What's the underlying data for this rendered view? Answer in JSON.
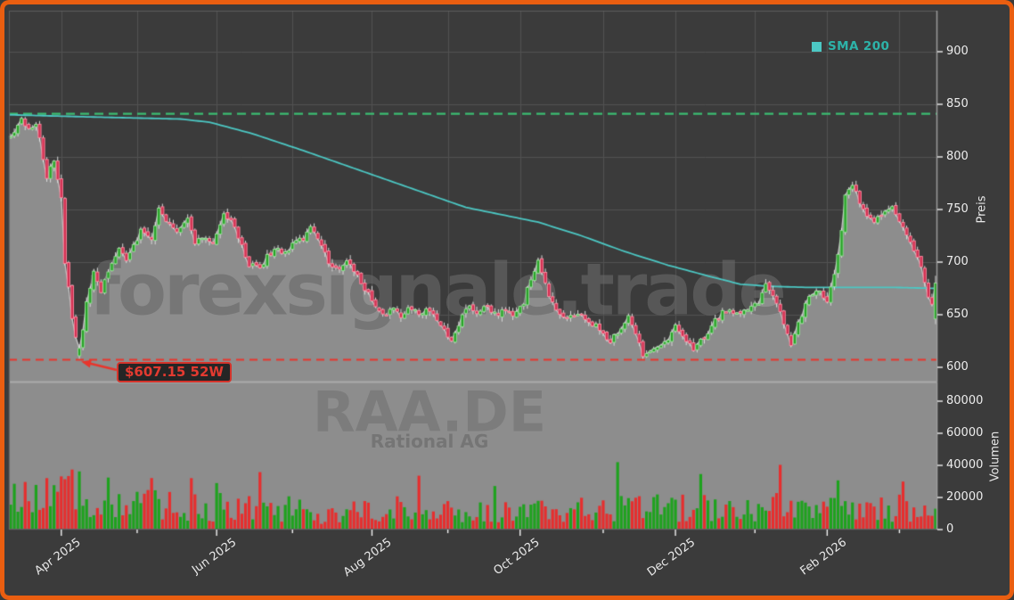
{
  "legend": {
    "label": "SMA 200"
  },
  "watermarks": {
    "site": "forexsignale.trade",
    "symbol": "RAA.DE",
    "company": "Rational AG"
  },
  "annotations": {
    "low_label": "$607.15 52W",
    "low_line_price": 607.15,
    "high_line_price": 841.0,
    "low_point_day": 19
  },
  "colors": {
    "border": "#ea5e10",
    "background": "#3b3b3b",
    "grid": "#525252",
    "panel_gray": "#8d8d8d",
    "area_top_line": "#c8c8c8",
    "separator": "#b4b4b4",
    "candle_up_fill": "#29a329",
    "candle_up_stroke": "#95dd95",
    "candle_down_fill": "#d23052",
    "candle_down_stroke": "#ff8aa0",
    "wick": "#d9d9d9",
    "volume_up": "#1ea21e",
    "volume_down": "#e62e2e",
    "sma_line": "#4cc8c4",
    "legend_text": "#2db3a9",
    "high_line": "#3cbd72",
    "low_line": "#e8352c",
    "low_label_text": "#e33a30",
    "spine": "#5c5c5c",
    "right_spine": "#9a9a9a",
    "tick_mark": "#f2f2f2"
  },
  "chart_data": {
    "type": "candlestick+volume",
    "title": "",
    "symbol": "RAA.DE",
    "x_axis": {
      "n_days": 257,
      "range_note": "Mar 2025 - Mar 2026, daily candles",
      "major_ticks": [
        {
          "day": 14,
          "label": "Apr 2025"
        },
        {
          "day": 57,
          "label": "Jun 2025"
        },
        {
          "day": 100,
          "label": "Aug 2025"
        },
        {
          "day": 141,
          "label": "Oct 2025"
        },
        {
          "day": 184,
          "label": "Dec 2025"
        },
        {
          "day": 226,
          "label": "Feb 2026"
        }
      ],
      "minor_tick_days": [
        35,
        78,
        121,
        164,
        206,
        246
      ]
    },
    "price_axis": {
      "label": "Preis",
      "ticks": [
        600,
        650,
        700,
        750,
        800,
        850,
        900
      ],
      "min": 587,
      "max": 939
    },
    "volume_axis": {
      "label": "Volumen",
      "ticks": [
        0,
        20000,
        40000,
        60000,
        80000
      ],
      "max": 92000
    },
    "seed": 20,
    "close_keypoints": [
      [
        0,
        818
      ],
      [
        3,
        838
      ],
      [
        5,
        825
      ],
      [
        7,
        833
      ],
      [
        9,
        800
      ],
      [
        10,
        782
      ],
      [
        12,
        795
      ],
      [
        14,
        760
      ],
      [
        15,
        700
      ],
      [
        17,
        648
      ],
      [
        19,
        611
      ],
      [
        21,
        662
      ],
      [
        23,
        690
      ],
      [
        25,
        672
      ],
      [
        28,
        700
      ],
      [
        30,
        712
      ],
      [
        32,
        700
      ],
      [
        35,
        722
      ],
      [
        36,
        730
      ],
      [
        39,
        722
      ],
      [
        41,
        750
      ],
      [
        44,
        735
      ],
      [
        46,
        728
      ],
      [
        49,
        740
      ],
      [
        51,
        718
      ],
      [
        54,
        725
      ],
      [
        56,
        718
      ],
      [
        59,
        746
      ],
      [
        61,
        740
      ],
      [
        64,
        715
      ],
      [
        66,
        698
      ],
      [
        69,
        695
      ],
      [
        71,
        705
      ],
      [
        73,
        712
      ],
      [
        76,
        708
      ],
      [
        78,
        718
      ],
      [
        81,
        722
      ],
      [
        83,
        734
      ],
      [
        86,
        718
      ],
      [
        88,
        698
      ],
      [
        91,
        692
      ],
      [
        93,
        700
      ],
      [
        96,
        688
      ],
      [
        98,
        675
      ],
      [
        101,
        658
      ],
      [
        103,
        650
      ],
      [
        106,
        655
      ],
      [
        108,
        648
      ],
      [
        110,
        658
      ],
      [
        113,
        650
      ],
      [
        115,
        655
      ],
      [
        118,
        645
      ],
      [
        120,
        638
      ],
      [
        122,
        624
      ],
      [
        125,
        648
      ],
      [
        127,
        658
      ],
      [
        129,
        650
      ],
      [
        132,
        658
      ],
      [
        134,
        650
      ],
      [
        137,
        655
      ],
      [
        139,
        648
      ],
      [
        142,
        662
      ],
      [
        144,
        685
      ],
      [
        146,
        700
      ],
      [
        147,
        692
      ],
      [
        149,
        668
      ],
      [
        152,
        650
      ],
      [
        154,
        648
      ],
      [
        157,
        652
      ],
      [
        159,
        645
      ],
      [
        162,
        640
      ],
      [
        164,
        632
      ],
      [
        166,
        625
      ],
      [
        169,
        638
      ],
      [
        171,
        648
      ],
      [
        173,
        630
      ],
      [
        175,
        612
      ],
      [
        177,
        615
      ],
      [
        180,
        622
      ],
      [
        182,
        628
      ],
      [
        184,
        638
      ],
      [
        187,
        625
      ],
      [
        189,
        618
      ],
      [
        192,
        628
      ],
      [
        194,
        640
      ],
      [
        197,
        652
      ],
      [
        199,
        655
      ],
      [
        202,
        650
      ],
      [
        204,
        656
      ],
      [
        207,
        662
      ],
      [
        209,
        682
      ],
      [
        211,
        668
      ],
      [
        213,
        652
      ],
      [
        216,
        622
      ],
      [
        218,
        642
      ],
      [
        221,
        668
      ],
      [
        223,
        675
      ],
      [
        226,
        662
      ],
      [
        228,
        688
      ],
      [
        230,
        730
      ],
      [
        231,
        762
      ],
      [
        233,
        772
      ],
      [
        235,
        758
      ],
      [
        237,
        742
      ],
      [
        239,
        738
      ],
      [
        242,
        748
      ],
      [
        244,
        752
      ],
      [
        247,
        735
      ],
      [
        249,
        718
      ],
      [
        252,
        698
      ],
      [
        254,
        668
      ],
      [
        255,
        660
      ],
      [
        256,
        665
      ]
    ],
    "sma200_keypoints": [
      [
        0,
        840
      ],
      [
        22,
        838
      ],
      [
        47,
        836
      ],
      [
        55,
        833
      ],
      [
        67,
        822
      ],
      [
        81,
        806
      ],
      [
        96,
        788
      ],
      [
        111,
        770
      ],
      [
        126,
        752
      ],
      [
        136,
        745
      ],
      [
        146,
        738
      ],
      [
        158,
        725
      ],
      [
        170,
        710
      ],
      [
        182,
        697
      ],
      [
        195,
        685
      ],
      [
        202,
        679
      ],
      [
        210,
        677
      ],
      [
        220,
        676
      ],
      [
        232,
        676
      ],
      [
        244,
        676
      ],
      [
        256,
        675
      ]
    ],
    "volume_keypoints": [
      [
        0,
        16000
      ],
      [
        8,
        19000
      ],
      [
        18,
        21000
      ],
      [
        28,
        14000
      ],
      [
        42,
        15000
      ],
      [
        56,
        13000
      ],
      [
        70,
        14000
      ],
      [
        84,
        10000
      ],
      [
        98,
        11000
      ],
      [
        112,
        12000
      ],
      [
        126,
        10000
      ],
      [
        140,
        12000
      ],
      [
        154,
        11000
      ],
      [
        168,
        12000
      ],
      [
        182,
        13000
      ],
      [
        196,
        12000
      ],
      [
        210,
        13000
      ],
      [
        224,
        12000
      ],
      [
        238,
        13000
      ],
      [
        250,
        14000
      ],
      [
        256,
        13000
      ]
    ],
    "volume_spikes": [
      [
        14,
        33000
      ],
      [
        17,
        36000
      ],
      [
        27,
        32000
      ],
      [
        39,
        34000
      ],
      [
        50,
        32000
      ],
      [
        57,
        31000
      ],
      [
        69,
        34000
      ],
      [
        113,
        32000
      ],
      [
        134,
        27000
      ],
      [
        168,
        41000
      ],
      [
        191,
        34000
      ],
      [
        213,
        40000
      ],
      [
        229,
        29000
      ],
      [
        247,
        28000
      ]
    ],
    "low_candle": {
      "day": 19,
      "open": 611,
      "close": 618,
      "high": 622,
      "low": 607.15
    },
    "last_candle": {
      "open": 646,
      "close": 680,
      "high": 687,
      "low": 641
    }
  }
}
